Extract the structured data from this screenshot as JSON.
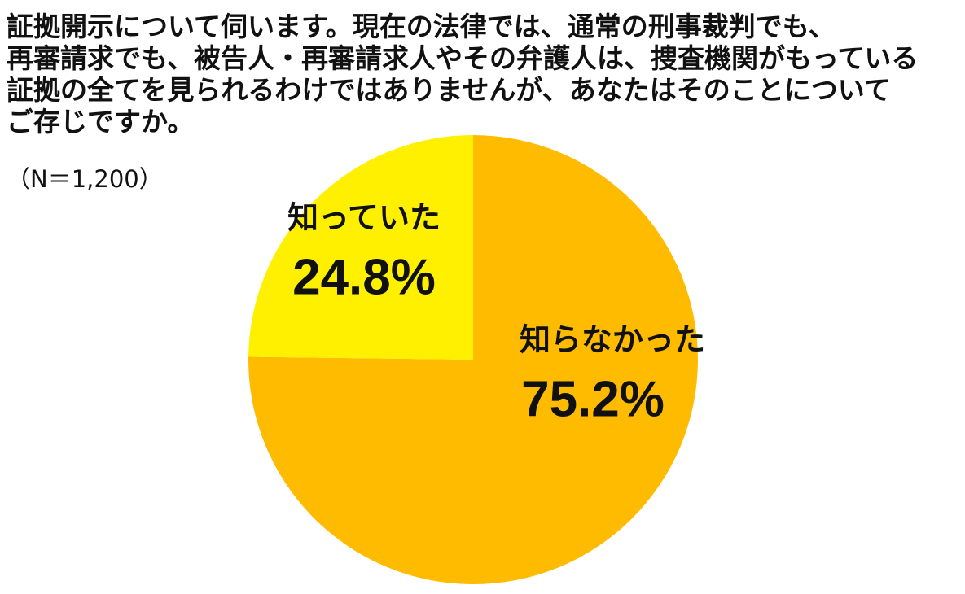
{
  "chart_data": {
    "type": "pie",
    "title_lines": [
      "証拠開示について伺います。現在の法律では、通常の刑事裁判でも、",
      "再審請求でも、被告人・再審請求人やその弁護人は、捜査機関がもっている",
      "証拠の全てを見られるわけではありませんが、あなたはそのことについて",
      "ご存じですか。"
    ],
    "subtitle": "（N＝1,200）",
    "categories": [
      "知らなかった",
      "知っていた"
    ],
    "values": [
      75.2,
      24.8
    ],
    "value_labels": [
      "75.2%",
      "24.8%"
    ],
    "colors": [
      "#ffbb00",
      "#fff000"
    ]
  }
}
